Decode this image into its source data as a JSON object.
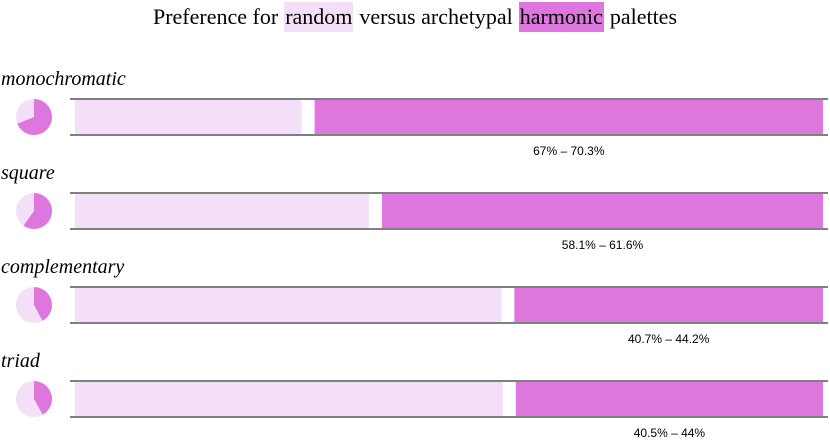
{
  "chart_data": {
    "type": "split-bar",
    "title_pieces": [
      "Preference for",
      "versus archetypal",
      "palettes"
    ],
    "categories": [
      "monochromatic",
      "square",
      "complementary",
      "triad"
    ],
    "series": [
      {
        "name": "random",
        "color": "#f3e0f8",
        "values": [
          31.1,
          40.1,
          57.8,
          58.0
        ]
      },
      {
        "name": "harmonic",
        "color": "#dd77dd",
        "values": [
          68.9,
          59.9,
          42.2,
          42.0
        ]
      }
    ],
    "interval_labels": [
      "67% – 70.3%",
      "58.1% – 61.6%",
      "40.7% – 44.2%",
      "40.5% – 44%"
    ]
  }
}
